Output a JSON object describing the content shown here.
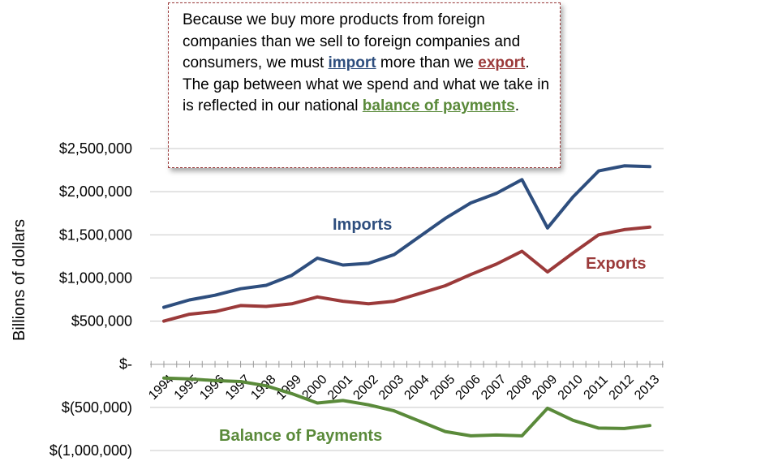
{
  "note": {
    "part1": "Because we buy more products from foreign companies than we sell to foreign companies and consumers, we must ",
    "import_word": "import",
    "part2": " more than we ",
    "export_word": "export",
    "part3": ". The gap between what we spend and what we take in is reflected in our national ",
    "bop_word": "balance of payments",
    "part4": ".",
    "colors": {
      "import": "#2e4e7e",
      "export": "#9b3a3a",
      "bop": "#5a8a3a"
    }
  },
  "chart_data": {
    "type": "line",
    "ylabel": "Billions of dollars",
    "ylim": [
      -1000000,
      2500000
    ],
    "yticks": [
      {
        "value": 2500000,
        "label": "$2,500,000"
      },
      {
        "value": 2000000,
        "label": "$2,000,000"
      },
      {
        "value": 1500000,
        "label": "$1,500,000"
      },
      {
        "value": 1000000,
        "label": "$1,000,000"
      },
      {
        "value": 500000,
        "label": "$500,000"
      },
      {
        "value": 0,
        "label": "$-"
      },
      {
        "value": -500000,
        "label": "$(500,000)"
      },
      {
        "value": -1000000,
        "label": "$(1,000,000)"
      }
    ],
    "categories": [
      "1994",
      "1995",
      "1996",
      "1997",
      "1998",
      "1999",
      "2000",
      "2001",
      "2002",
      "2003",
      "2004",
      "2005",
      "2006",
      "2007",
      "2008",
      "2009",
      "2010",
      "2011",
      "2012",
      "2013"
    ],
    "grid": true,
    "series": [
      {
        "name": "Imports",
        "color": "#2e4e7e",
        "values": [
          660000,
          745000,
          800000,
          875000,
          915000,
          1030000,
          1230000,
          1150000,
          1170000,
          1270000,
          1480000,
          1690000,
          1870000,
          1980000,
          2140000,
          1580000,
          1940000,
          2240000,
          2300000,
          2290000
        ]
      },
      {
        "name": "Exports",
        "color": "#9b3a3a",
        "values": [
          500000,
          580000,
          610000,
          680000,
          670000,
          700000,
          780000,
          730000,
          700000,
          730000,
          820000,
          910000,
          1040000,
          1160000,
          1310000,
          1070000,
          1290000,
          1500000,
          1560000,
          1590000
        ]
      },
      {
        "name": "Balance of Payments",
        "color": "#5a8a3a",
        "values": [
          -160000,
          -170000,
          -190000,
          -200000,
          -250000,
          -340000,
          -450000,
          -420000,
          -470000,
          -540000,
          -660000,
          -780000,
          -830000,
          -820000,
          -830000,
          -510000,
          -650000,
          -740000,
          -745000,
          -710000
        ]
      }
    ]
  }
}
